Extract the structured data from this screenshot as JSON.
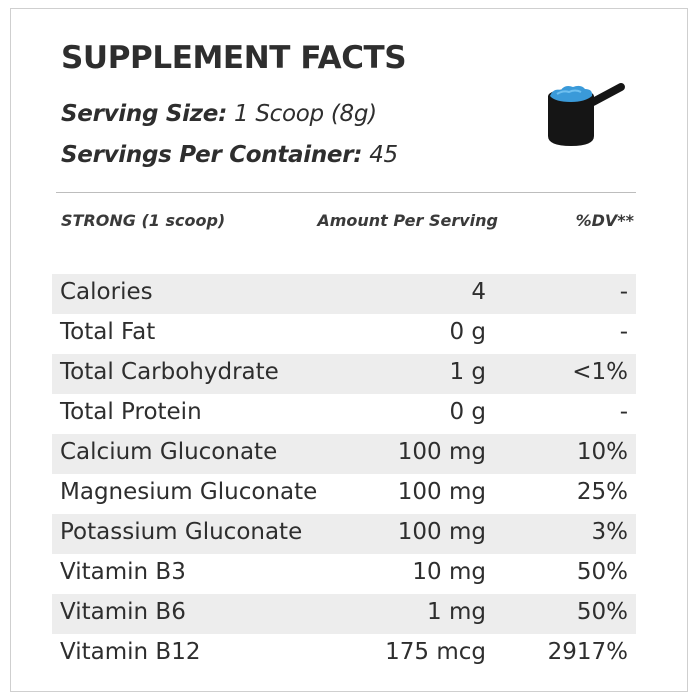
{
  "title": "SUPPLEMENT FACTS",
  "serving_size": {
    "label": "Serving Size:",
    "value": "1 Scoop (8g)"
  },
  "servings_per_container": {
    "label": "Servings Per Container:",
    "value": "45"
  },
  "icon": "scoop-icon",
  "colors": {
    "scoop_body": "#151515",
    "scoop_powder": "#3a9ad9",
    "row_shade": "#ededed"
  },
  "table": {
    "headers": {
      "name": "STRONG (1 scoop)",
      "amount": "Amount Per Serving",
      "dv": "%DV**"
    },
    "rows": [
      {
        "name": "Calories",
        "amount": "4",
        "dv": "-"
      },
      {
        "name": "Total Fat",
        "amount": "0 g",
        "dv": "-"
      },
      {
        "name": "Total Carbohydrate",
        "amount": "1 g",
        "dv": "<1%"
      },
      {
        "name": "Total Protein",
        "amount": "0 g",
        "dv": "-"
      },
      {
        "name": "Calcium Gluconate",
        "amount": "100 mg",
        "dv": "10%"
      },
      {
        "name": "Magnesium Gluconate",
        "amount": "100 mg",
        "dv": "25%"
      },
      {
        "name": "Potassium Gluconate",
        "amount": "100 mg",
        "dv": "3%"
      },
      {
        "name": "Vitamin B3",
        "amount": "10 mg",
        "dv": "50%"
      },
      {
        "name": "Vitamin B6",
        "amount": "1 mg",
        "dv": "50%"
      },
      {
        "name": "Vitamin B12",
        "amount": "175 mcg",
        "dv": "2917%"
      }
    ]
  }
}
